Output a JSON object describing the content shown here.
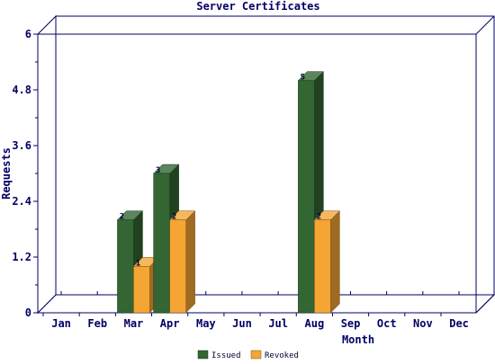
{
  "chart_data": {
    "type": "bar",
    "title": "Server Certificates",
    "xlabel": "Month",
    "ylabel": "Requests",
    "categories": [
      "Jan",
      "Feb",
      "Mar",
      "Apr",
      "May",
      "Jun",
      "Jul",
      "Aug",
      "Sep",
      "Oct",
      "Nov",
      "Dec"
    ],
    "series": [
      {
        "name": "Issued",
        "values": [
          0,
          0,
          2,
          3,
          0,
          0,
          0,
          5,
          0,
          0,
          0,
          0
        ],
        "color": "#336633"
      },
      {
        "name": "Revoked",
        "values": [
          0,
          0,
          1,
          2,
          0,
          0,
          0,
          2,
          0,
          0,
          0,
          0
        ],
        "color": "#f5a534"
      }
    ],
    "ylim": [
      0,
      6
    ],
    "yticks": [
      "0",
      "1.2",
      "2.4",
      "3.6",
      "4.8",
      "6"
    ],
    "grid": false,
    "legend": "bottom-center",
    "style": "3d"
  }
}
